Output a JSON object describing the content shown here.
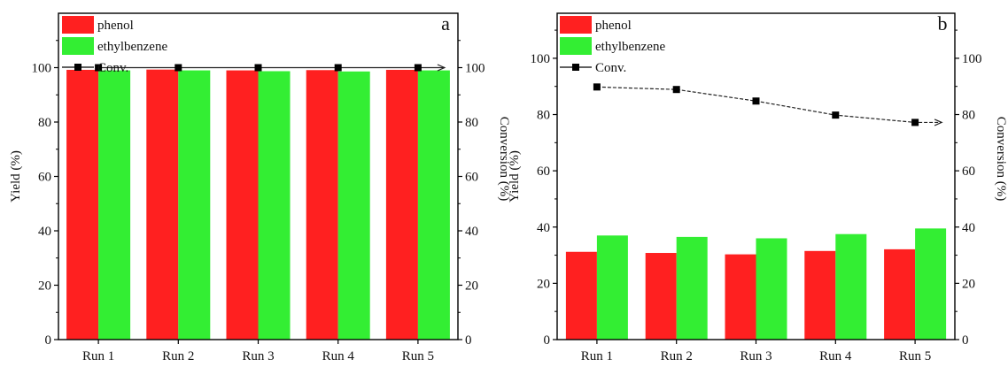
{
  "chart_data": [
    {
      "type": "bar",
      "panel_label": "a",
      "categories": [
        "Run 1",
        "Run 2",
        "Run 3",
        "Run 4",
        "Run 5"
      ],
      "series": [
        {
          "name": "phenol",
          "type": "bar",
          "axis": "left",
          "color": "#ff2020",
          "values": [
            99.2,
            99.3,
            99.0,
            99.1,
            99.2
          ]
        },
        {
          "name": "ethylbenzene",
          "type": "bar",
          "axis": "left",
          "color": "#33ee33",
          "values": [
            99.0,
            99.0,
            98.7,
            98.6,
            99.0
          ]
        },
        {
          "name": "Conv.",
          "type": "line",
          "axis": "right",
          "color": "#000000",
          "values": [
            100,
            100,
            100,
            100,
            100
          ]
        }
      ],
      "ylabel": "Yield (%)",
      "y2label": "Conversion (%)",
      "ylim": [
        0,
        120
      ],
      "y2lim": [
        0,
        120
      ],
      "yticks": [
        0,
        20,
        40,
        60,
        80,
        100
      ],
      "y2ticks": [
        0,
        20,
        40,
        60,
        80,
        100
      ],
      "legend_position": "top-left",
      "grid": false
    },
    {
      "type": "bar",
      "panel_label": "b",
      "categories": [
        "Run 1",
        "Run 2",
        "Run 3",
        "Run 4",
        "Run 5"
      ],
      "series": [
        {
          "name": "phenol",
          "type": "bar",
          "axis": "left",
          "color": "#ff2020",
          "values": [
            31.2,
            30.8,
            30.3,
            31.5,
            32.1
          ]
        },
        {
          "name": "ethylbenzene",
          "type": "bar",
          "axis": "left",
          "color": "#33ee33",
          "values": [
            37.0,
            36.5,
            36.0,
            37.5,
            39.5
          ]
        },
        {
          "name": "Conv.",
          "type": "line",
          "axis": "right",
          "color": "#000000",
          "values": [
            89.8,
            88.9,
            84.8,
            79.8,
            77.2
          ]
        }
      ],
      "ylabel": "Yield (%)",
      "y2label": "Conversion (%)",
      "ylim": [
        0,
        116
      ],
      "y2lim": [
        0,
        116
      ],
      "yticks": [
        0,
        20,
        40,
        60,
        80,
        100
      ],
      "y2ticks": [
        0,
        20,
        40,
        60,
        80,
        100
      ],
      "legend_position": "top-left",
      "grid": false
    }
  ]
}
